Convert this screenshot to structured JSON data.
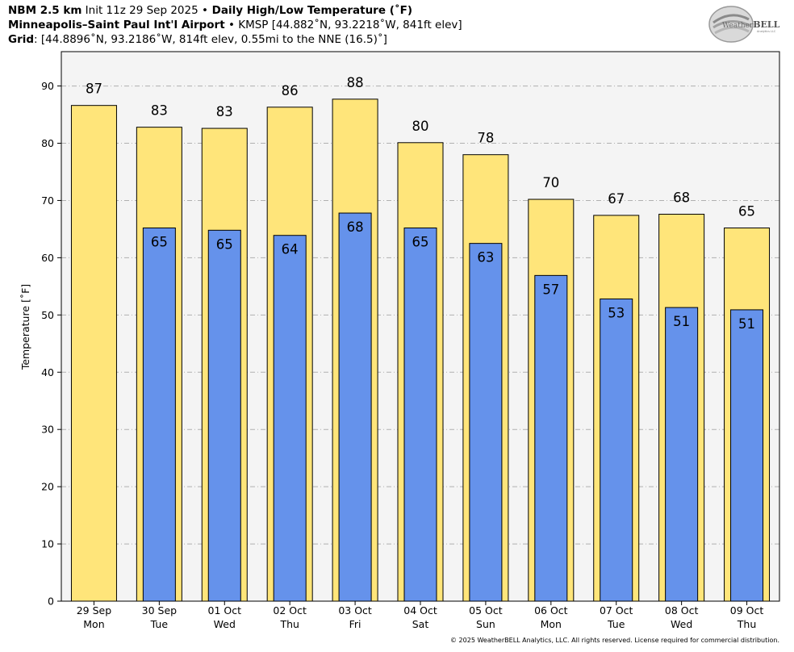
{
  "header": {
    "model_bold": "NBM 2.5 km",
    "init": " Init 11z 29 Sep 2025 ",
    "bullet1": "•",
    "product_bold": " Daily High/Low Temperature (˚F)",
    "station_bold": "Minneapolis–Saint Paul Int'l Airport",
    "bullet2": " • ",
    "station_info": "KMSP [44.882˚N, 93.2218˚W, 841ft elev]",
    "grid_bold": "Grid",
    "grid_info": ": [44.8896˚N, 93.2186˚W, 814ft elev, 0.55mi to the NNE (16.5)˚]"
  },
  "logo": {
    "text_a": "Weather",
    "text_b": "BELL",
    "sub": "Analytics LLC"
  },
  "footer": "© 2025 WeatherBELL Analytics, LLC. All rights reserved. License required for commercial distribution.",
  "colors": {
    "high": "#ffe57a",
    "low": "#6592eb",
    "plot_bg": "#f4f4f4",
    "grid": "#b0b0b0"
  },
  "chart_data": {
    "type": "bar",
    "ylabel": "Temperature [˚F]",
    "ylim": [
      0,
      96
    ],
    "yticks": [
      0,
      10,
      20,
      30,
      40,
      50,
      60,
      70,
      80,
      90
    ],
    "grid": true,
    "categories": [
      {
        "date": "29 Sep",
        "day": "Mon"
      },
      {
        "date": "30 Sep",
        "day": "Tue"
      },
      {
        "date": "01 Oct",
        "day": "Wed"
      },
      {
        "date": "02 Oct",
        "day": "Thu"
      },
      {
        "date": "03 Oct",
        "day": "Fri"
      },
      {
        "date": "04 Oct",
        "day": "Sat"
      },
      {
        "date": "05 Oct",
        "day": "Sun"
      },
      {
        "date": "06 Oct",
        "day": "Mon"
      },
      {
        "date": "07 Oct",
        "day": "Tue"
      },
      {
        "date": "08 Oct",
        "day": "Wed"
      },
      {
        "date": "09 Oct",
        "day": "Thu"
      }
    ],
    "series": [
      {
        "key": "high",
        "values": [
          86.6,
          82.8,
          82.6,
          86.3,
          87.7,
          80.1,
          78.0,
          70.2,
          67.4,
          67.6,
          65.2
        ],
        "labels": [
          "87",
          "83",
          "83",
          "86",
          "88",
          "80",
          "78",
          "70",
          "67",
          "68",
          "65"
        ]
      },
      {
        "key": "low",
        "values": [
          null,
          65.2,
          64.8,
          63.9,
          67.8,
          65.2,
          62.5,
          56.9,
          52.8,
          51.3,
          50.9
        ],
        "labels": [
          null,
          "65",
          "65",
          "64",
          "68",
          "65",
          "63",
          "57",
          "53",
          "51",
          "51"
        ]
      }
    ]
  }
}
